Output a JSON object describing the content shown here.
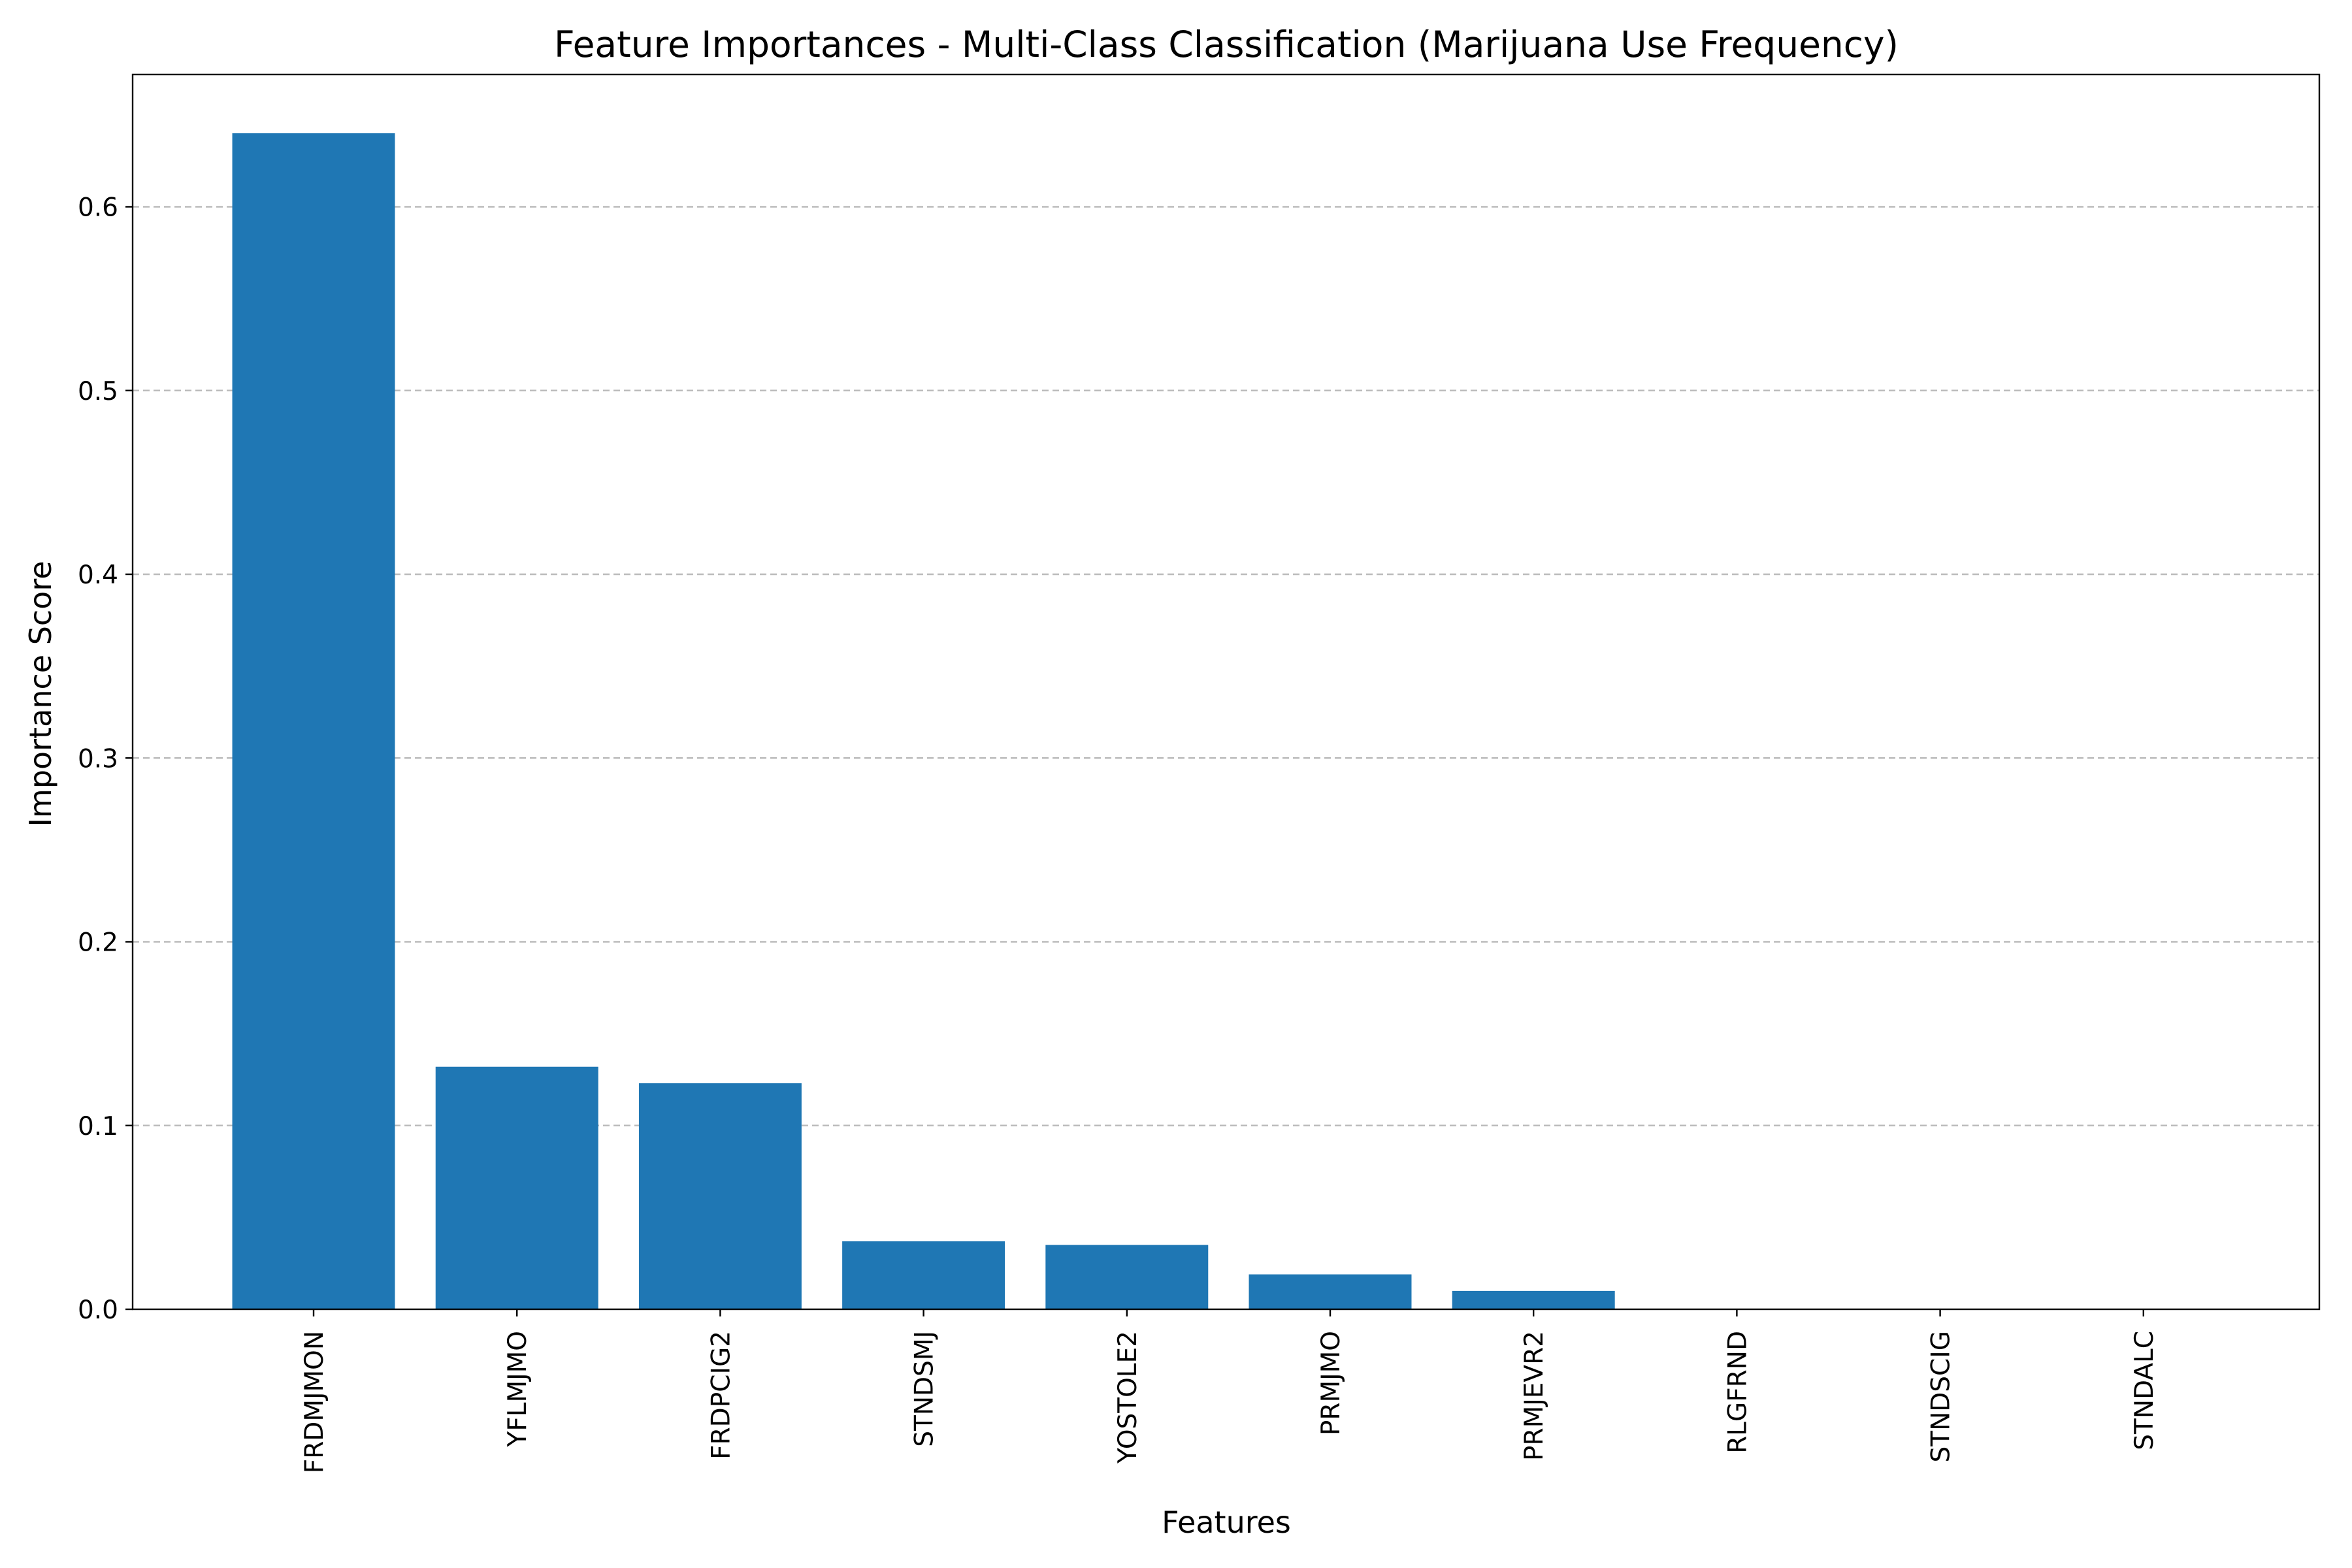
{
  "chart_data": {
    "type": "bar",
    "title": "Feature Importances - Multi-Class Classification (Marijuana Use Frequency)",
    "xlabel": "Features",
    "ylabel": "Importance Score",
    "categories": [
      "FRDMJMON",
      "YFLMJMO",
      "FRDPCIG2",
      "STNDSMJ",
      "YOSTOLE2",
      "PRMJMO",
      "PRMJEVR2",
      "RLGFRND",
      "STNDSCIG",
      "STNDALC"
    ],
    "values": [
      0.64,
      0.132,
      0.123,
      0.037,
      0.035,
      0.019,
      0.01,
      0.0,
      0.0,
      0.0
    ],
    "yticks": [
      0.0,
      0.1,
      0.2,
      0.3,
      0.4,
      0.5,
      0.6
    ],
    "ytick_labels": [
      "0.0",
      "0.1",
      "0.2",
      "0.3",
      "0.4",
      "0.5",
      "0.6"
    ],
    "ylim": [
      0,
      0.672
    ],
    "grid": "y-dashed",
    "bar_color": "#1f77b4",
    "grid_color": "#b0b0b0"
  }
}
